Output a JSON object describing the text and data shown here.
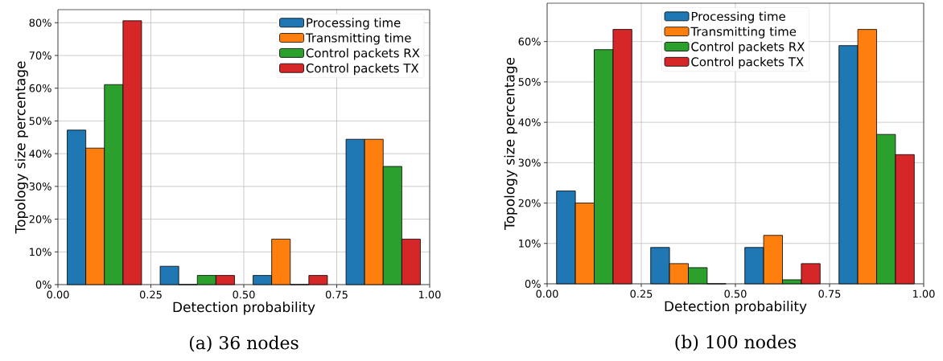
{
  "chart_data": [
    {
      "type": "histogram",
      "bins": [
        0,
        0.25,
        0.5,
        0.75,
        1
      ],
      "xlabel": "Detection probability",
      "ylabel": "Topology size percentage",
      "annotations": [
        "(a) 36 nodes"
      ],
      "series": [
        {
          "name": "Processing time",
          "color": "#1f77b4",
          "values": [
            47.2,
            5.6,
            2.8,
            44.4
          ]
        },
        {
          "name": "Transmitting time",
          "color": "#ff7f0e",
          "values": [
            41.7,
            0,
            13.9,
            44.4
          ]
        },
        {
          "name": "Control packets RX",
          "color": "#2ca02c",
          "values": [
            61.1,
            2.8,
            0,
            36.1
          ]
        },
        {
          "name": "Control packets TX",
          "color": "#d62728",
          "values": [
            80.6,
            2.8,
            2.8,
            13.9
          ]
        }
      ],
      "xlim": [
        0,
        1
      ],
      "ylim": [
        0,
        84
      ],
      "xticks": [
        {
          "value": 0,
          "label": "0.00"
        },
        {
          "value": 0.25,
          "label": "0.25"
        },
        {
          "value": 0.5,
          "label": "0.50"
        },
        {
          "value": 0.75,
          "label": "0.75"
        },
        {
          "value": 1,
          "label": "1.00"
        }
      ],
      "yticks": [
        {
          "value": 0,
          "label": "0%"
        },
        {
          "value": 10,
          "label": "10%"
        },
        {
          "value": 20,
          "label": "20%"
        },
        {
          "value": 30,
          "label": "30%"
        },
        {
          "value": 40,
          "label": "40%"
        },
        {
          "value": 50,
          "label": "50%"
        },
        {
          "value": 60,
          "label": "60%"
        },
        {
          "value": 70,
          "label": "70%"
        },
        {
          "value": 80,
          "label": "80%"
        }
      ],
      "grid": true,
      "legend": "top right"
    },
    {
      "type": "histogram",
      "bins": [
        0,
        0.25,
        0.5,
        0.75,
        1
      ],
      "xlabel": "Detection probability",
      "ylabel": "Topology size percentage",
      "annotations": [
        "(b) 100 nodes"
      ],
      "series": [
        {
          "name": "Processing time",
          "color": "#1f77b4",
          "values": [
            23,
            9,
            9,
            59
          ]
        },
        {
          "name": "Transmitting time",
          "color": "#ff7f0e",
          "values": [
            20,
            5,
            12,
            63
          ]
        },
        {
          "name": "Control packets RX",
          "color": "#2ca02c",
          "values": [
            58,
            4,
            1,
            37
          ]
        },
        {
          "name": "Control packets TX",
          "color": "#d62728",
          "values": [
            63,
            0,
            5,
            32
          ]
        }
      ],
      "xlim": [
        0,
        1
      ],
      "ylim": [
        0,
        69.5
      ],
      "xticks": [
        {
          "value": 0,
          "label": "0.00"
        },
        {
          "value": 0.25,
          "label": "0.25"
        },
        {
          "value": 0.5,
          "label": "0.50"
        },
        {
          "value": 0.75,
          "label": "0.75"
        },
        {
          "value": 1,
          "label": "1.00"
        }
      ],
      "yticks": [
        {
          "value": 0,
          "label": "0%"
        },
        {
          "value": 10,
          "label": "10%"
        },
        {
          "value": 20,
          "label": "20%"
        },
        {
          "value": 30,
          "label": "30%"
        },
        {
          "value": 40,
          "label": "40%"
        },
        {
          "value": 50,
          "label": "50%"
        },
        {
          "value": 60,
          "label": "60%"
        }
      ],
      "grid": true,
      "legend": "top"
    }
  ]
}
